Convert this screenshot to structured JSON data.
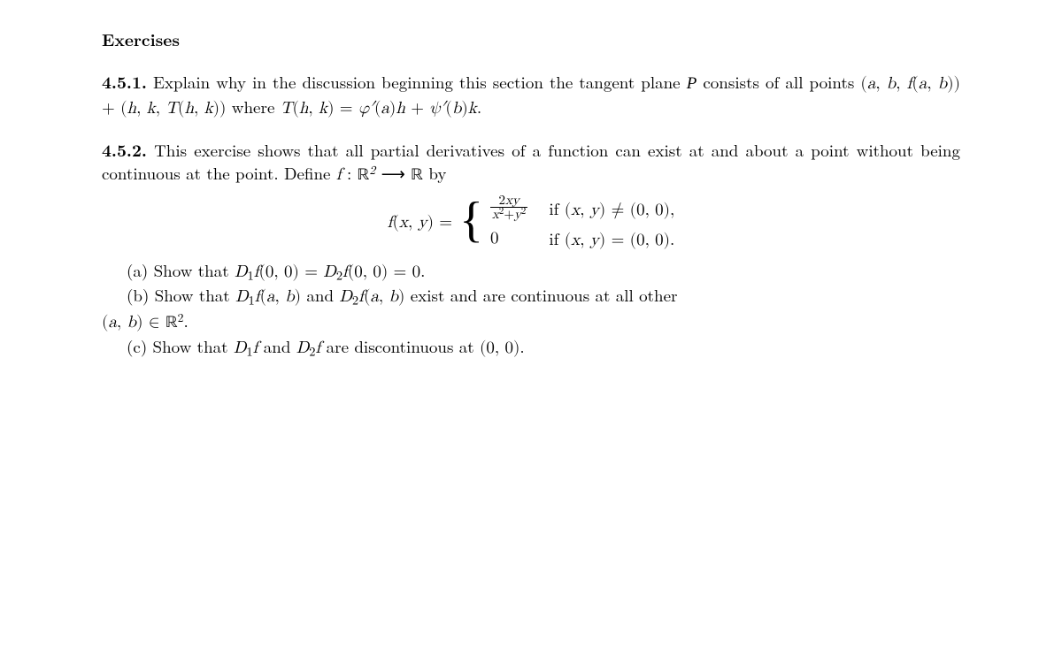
{
  "colors": {
    "text": "#000000",
    "bg": "#ffffff"
  },
  "fontsize_body_pt": 19,
  "heading": "Exercises",
  "ex451": {
    "number": "4.5.1.",
    "text_pre": " Explain why in the discussion beginning this section the tangent plane ",
    "calP": "P",
    "text_mid1": " consists of all points ",
    "pts": "(a, b, f(a, b)) + (h, k, T(h, k))",
    "text_mid2": " where ",
    "rhs_lead": "T(h, k) = ",
    "rhs_expr": "φ′(a)h + ψ′(b)k."
  },
  "ex452": {
    "number": "4.5.2.",
    "intro_a": " This exercise shows that all partial derivatives of a function can exist at and about a point without being continuous at the point. Define ",
    "fmap": "f : ",
    "R2": "ℝ",
    "sup2": "2",
    "arrow": " ⟶ ",
    "R": "ℝ",
    "intro_b": " by",
    "eq_lhs": "f(x, y) = ",
    "frac_num": "2xy",
    "frac_den_left": "x",
    "frac_den_plus": "+",
    "frac_den_right": "y",
    "cond1": "if (x, y) ≠ (0, 0),",
    "case2_val": "0",
    "cond2": "if (x, y) = (0, 0).",
    "part_a": "(a) Show that D₁f(0, 0) = D₂f(0, 0) = 0.",
    "part_b": "(b) Show that D₁f(a, b) and D₂f(a, b) exist and are continuous at all other",
    "part_b_tail_lhs": "(a, b) ∈ ",
    "part_b_tail_R": "ℝ",
    "part_b_tail_sup": "2",
    "part_b_tail_period": ".",
    "part_c": "(c) Show that D₁f and D₂f are discontinuous at (0, 0)."
  }
}
